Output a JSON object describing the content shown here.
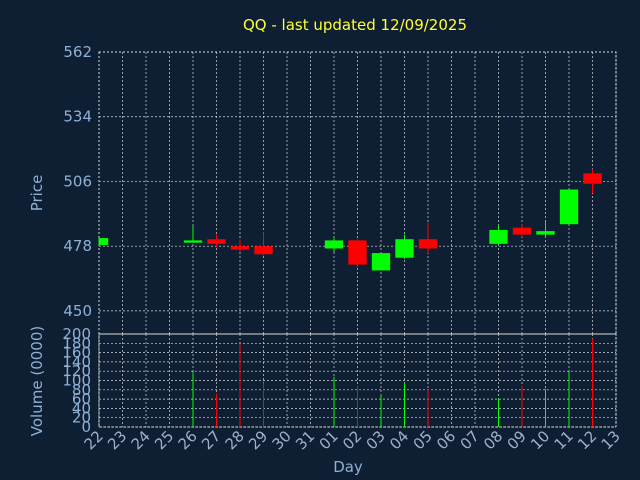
{
  "chart_data": {
    "type": "candlestick",
    "title": "QQ - last updated 12/09/2025",
    "xlabel": "Day",
    "colors": {
      "background": "#0f1f33",
      "up": "#00ff00",
      "down": "#ff0000",
      "text": "#8fb0d6",
      "title": "#ffff33",
      "grid": "#d8d8d8"
    },
    "days": [
      "22",
      "23",
      "24",
      "25",
      "26",
      "27",
      "28",
      "29",
      "30",
      "31",
      "01",
      "02",
      "03",
      "04",
      "05",
      "06",
      "07",
      "08",
      "09",
      "10",
      "11",
      "12",
      "13"
    ],
    "price_panel": {
      "ylabel": "Price",
      "ylim": [
        440,
        562
      ],
      "yticks": [
        450,
        478,
        506,
        534,
        562
      ],
      "grid": true
    },
    "volume_panel": {
      "ylabel": "Volume (0000)",
      "ylim": [
        0,
        200
      ],
      "yticks": [
        0,
        20,
        40,
        60,
        80,
        100,
        120,
        140,
        160,
        180,
        200
      ],
      "grid": true
    },
    "candles": [
      {
        "day": "22",
        "open": 478.5,
        "high": 481.5,
        "low": 478.5,
        "close": 481.5,
        "volume": 0
      },
      {
        "day": "26",
        "open": 479.5,
        "high": 487.0,
        "low": 479.5,
        "close": 480.5,
        "volume": 118
      },
      {
        "day": "27",
        "open": 481.0,
        "high": 483.0,
        "low": 477.5,
        "close": 479.0,
        "volume": 72
      },
      {
        "day": "28",
        "open": 478.0,
        "high": 481.0,
        "low": 475.5,
        "close": 476.5,
        "volume": 180
      },
      {
        "day": "29",
        "open": 478.0,
        "high": 484.0,
        "low": 474.0,
        "close": 474.5,
        "volume": 95
      },
      {
        "day": "01",
        "open": 477.0,
        "high": 481.5,
        "low": 475.5,
        "close": 480.5,
        "volume": 108
      },
      {
        "day": "02",
        "open": 480.5,
        "high": 481.0,
        "low": 469.0,
        "close": 470.0,
        "volume": 88
      },
      {
        "day": "03",
        "open": 467.5,
        "high": 475.0,
        "low": 467.5,
        "close": 475.0,
        "volume": 70
      },
      {
        "day": "04",
        "open": 473.0,
        "high": 483.0,
        "low": 472.5,
        "close": 481.0,
        "volume": 95
      },
      {
        "day": "05",
        "open": 481.0,
        "high": 488.0,
        "low": 475.0,
        "close": 477.0,
        "volume": 82
      },
      {
        "day": "08",
        "open": 479.0,
        "high": 487.0,
        "low": 478.5,
        "close": 485.0,
        "volume": 62
      },
      {
        "day": "09",
        "open": 486.0,
        "high": 487.5,
        "low": 482.0,
        "close": 483.0,
        "volume": 88
      },
      {
        "day": "10",
        "open": 483.0,
        "high": 488.5,
        "low": 482.0,
        "close": 484.5,
        "volume": 82
      },
      {
        "day": "11",
        "open": 487.5,
        "high": 502.5,
        "low": 487.5,
        "close": 502.5,
        "volume": 120
      },
      {
        "day": "12",
        "open": 509.5,
        "high": 511.5,
        "low": 501.0,
        "close": 505.0,
        "volume": 190
      }
    ]
  }
}
